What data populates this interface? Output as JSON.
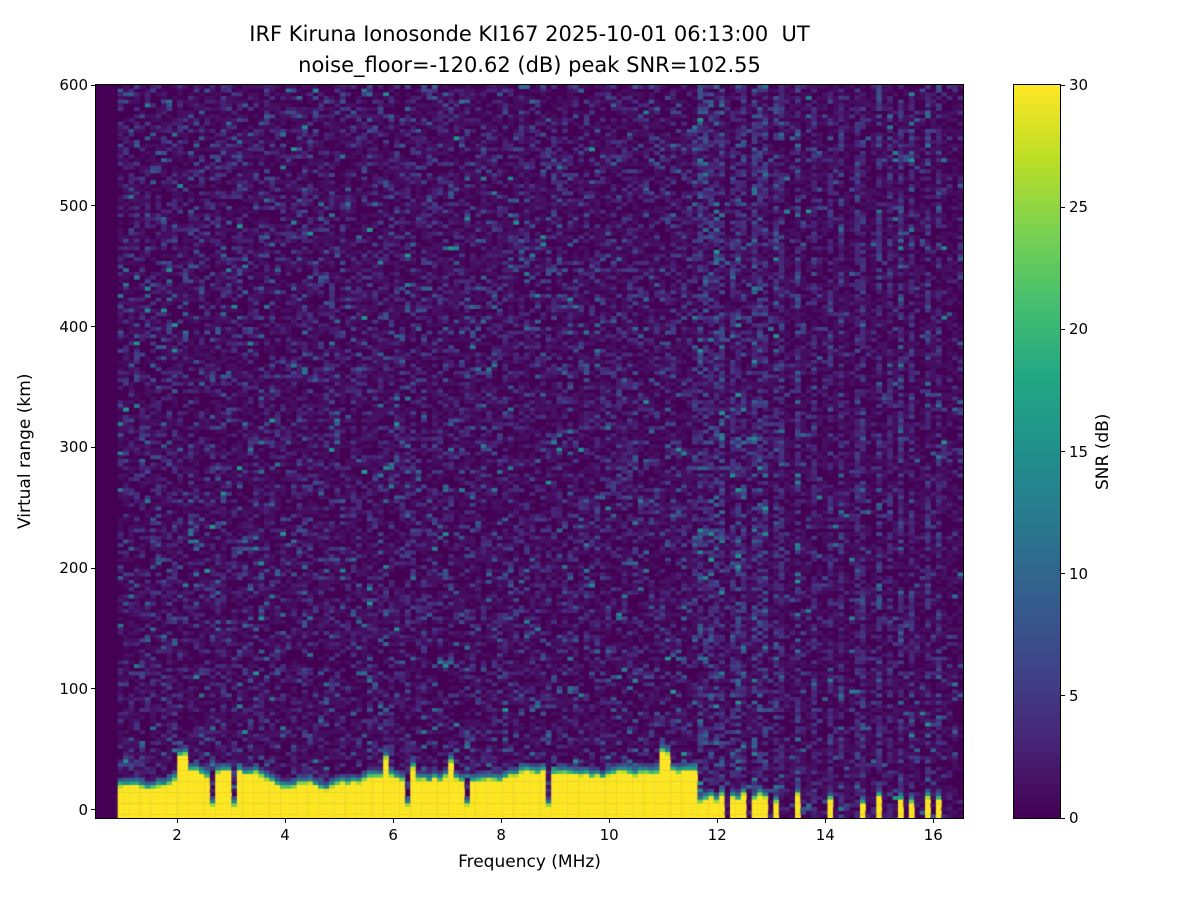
{
  "chart_data": {
    "type": "heatmap",
    "title": "IRF Kiruna Ionosonde KI167 2025-10-01 06:13:00  UT",
    "subtitle": "noise_floor=-120.62 (dB) peak SNR=102.55",
    "noise_floor_db": -120.62,
    "peak_snr_db": 102.55,
    "xlabel": "Frequency (MHz)",
    "ylabel": "Virtual range (km)",
    "xlim": [
      0.5,
      16.55
    ],
    "ylim": [
      -7,
      600
    ],
    "xticks": [
      2,
      4,
      6,
      8,
      10,
      12,
      14,
      16
    ],
    "yticks": [
      0,
      100,
      200,
      300,
      400,
      500,
      600
    ],
    "colorbar": {
      "label": "SNR (dB)",
      "ticks": [
        0,
        5,
        10,
        15,
        20,
        25,
        30
      ],
      "vmin": 0,
      "vmax": 30,
      "colormap": "viridis"
    },
    "colormap_stops": [
      {
        "pos": 0.0,
        "rgb": [
          68,
          1,
          84
        ]
      },
      {
        "pos": 0.1,
        "rgb": [
          72,
          36,
          117
        ]
      },
      {
        "pos": 0.2,
        "rgb": [
          64,
          67,
          135
        ]
      },
      {
        "pos": 0.3,
        "rgb": [
          52,
          94,
          141
        ]
      },
      {
        "pos": 0.4,
        "rgb": [
          41,
          120,
          142
        ]
      },
      {
        "pos": 0.5,
        "rgb": [
          33,
          144,
          140
        ]
      },
      {
        "pos": 0.6,
        "rgb": [
          34,
          167,
          132
        ]
      },
      {
        "pos": 0.7,
        "rgb": [
          68,
          190,
          112
        ]
      },
      {
        "pos": 0.8,
        "rgb": [
          122,
          209,
          81
        ]
      },
      {
        "pos": 0.9,
        "rgb": [
          189,
          222,
          38
        ]
      },
      {
        "pos": 1.0,
        "rgb": [
          253,
          231,
          37
        ]
      }
    ],
    "background": "dark purple field (SNR near 0 dB) with sparse blue-teal noise speckles",
    "echo_band": {
      "description": "strong saturated echo (SNR >= 30 dB, yellow) at low virtual range with green-teal upper fringe",
      "start_mhz": 0.95,
      "end_mhz": 11.62,
      "top_km_min": 15,
      "top_km_max": 45,
      "notch_freqs_mhz": [
        2.65,
        3.05,
        6.28,
        7.35,
        8.9
      ]
    },
    "interference_stripes": [
      {
        "f": 11.67,
        "s": 0.9,
        "blip": true
      },
      {
        "f": 11.79,
        "s": 0.8,
        "blip": true
      },
      {
        "f": 11.9,
        "s": 0.9,
        "blip": true
      },
      {
        "f": 12.01,
        "s": 0.8,
        "blip": true
      },
      {
        "f": 12.13,
        "s": 0.9,
        "blip": true
      },
      {
        "f": 12.25,
        "s": 0.7,
        "blip": true
      },
      {
        "f": 12.38,
        "s": 0.9,
        "blip": true
      },
      {
        "f": 12.52,
        "s": 0.7,
        "blip": true
      },
      {
        "f": 12.65,
        "s": 0.9,
        "blip": true
      },
      {
        "f": 12.78,
        "s": 0.6,
        "blip": true
      },
      {
        "f": 12.92,
        "s": 0.8,
        "blip": true
      },
      {
        "f": 13.08,
        "s": 0.7,
        "blip": true
      },
      {
        "f": 13.2,
        "s": 0.5,
        "blip": false
      },
      {
        "f": 13.5,
        "s": 0.9,
        "blip": true
      },
      {
        "f": 13.75,
        "s": 0.4,
        "blip": false
      },
      {
        "f": 14.05,
        "s": 0.7,
        "blip": true
      },
      {
        "f": 14.3,
        "s": 0.5,
        "blip": false
      },
      {
        "f": 14.55,
        "s": 0.4,
        "blip": false
      },
      {
        "f": 14.68,
        "s": 0.6,
        "blip": true
      },
      {
        "f": 15.0,
        "s": 0.7,
        "blip": true
      },
      {
        "f": 15.15,
        "s": 0.4,
        "blip": false
      },
      {
        "f": 15.4,
        "s": 0.6,
        "blip": true
      },
      {
        "f": 15.55,
        "s": 0.5,
        "blip": true
      },
      {
        "f": 15.9,
        "s": 0.7,
        "blip": true
      },
      {
        "f": 16.1,
        "s": 0.6,
        "blip": true
      }
    ]
  }
}
